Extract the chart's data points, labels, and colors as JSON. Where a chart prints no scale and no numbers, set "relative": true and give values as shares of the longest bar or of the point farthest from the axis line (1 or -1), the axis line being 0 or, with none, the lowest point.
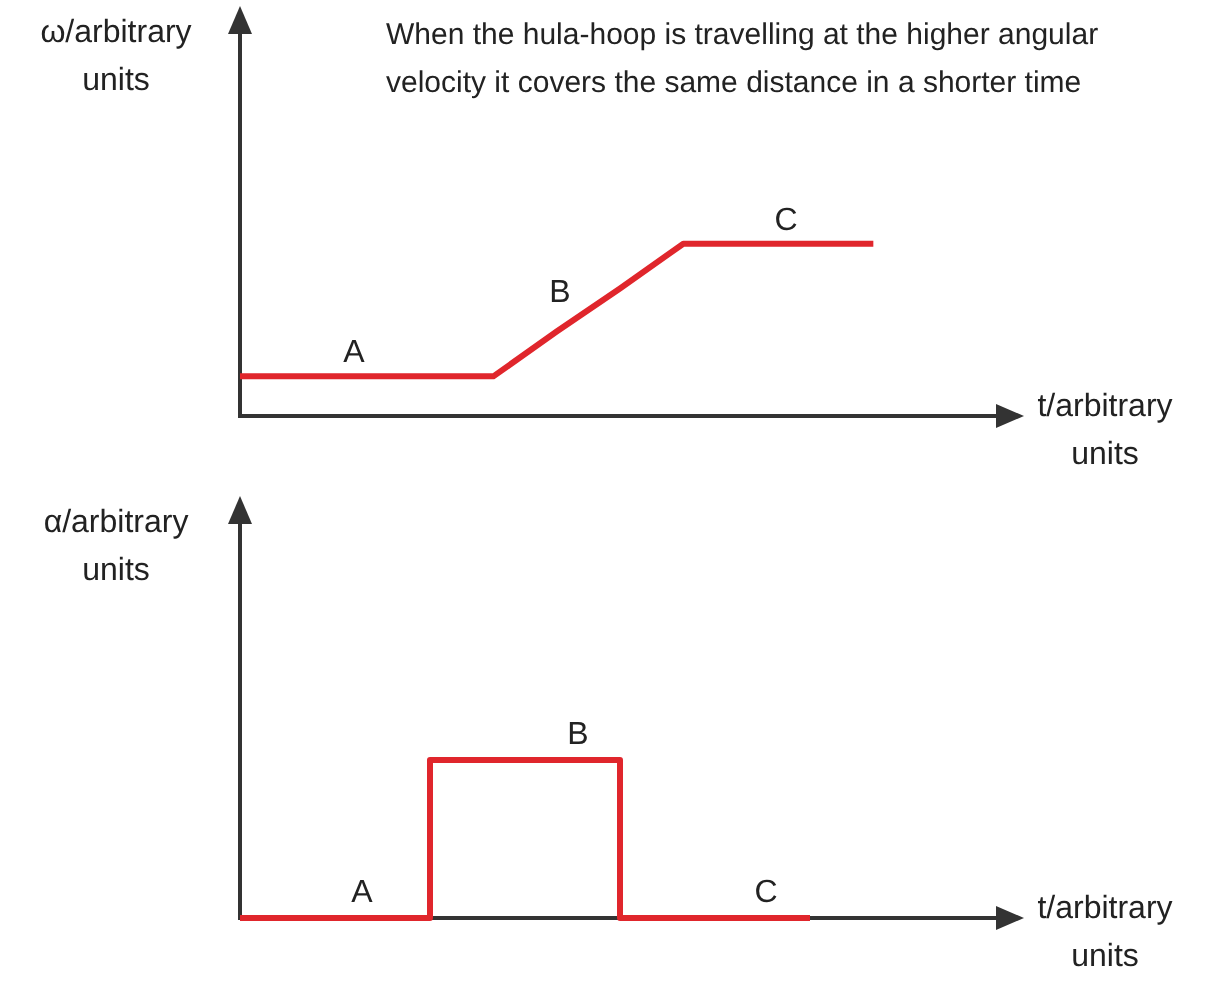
{
  "chart_data": [
    {
      "type": "line",
      "ylabel": "ω/arbitrary units",
      "xlabel": "t/arbitrary units",
      "annotations": [
        "When the hula-hoop is travelling at the higher angular velocity it covers the same distance in a shorter time",
        "A",
        "B",
        "C"
      ],
      "categories": [
        null,
        null,
        null,
        null,
        null,
        null,
        null,
        null,
        null,
        null,
        null,
        null,
        null
      ],
      "relative": true,
      "tick_labels": false,
      "grid": false,
      "legend": false,
      "marker": "none",
      "series": [
        {
          "color": "#e0262c",
          "values": [
            0.23,
            0.23,
            0.23,
            0.23,
            0.23,
            0.49,
            0.74,
            1,
            1,
            1,
            1,
            null,
            null
          ]
        }
      ]
    },
    {
      "type": "step",
      "ylabel": "α/arbitrary units",
      "xlabel": "t/arbitrary units",
      "annotations": [
        "A",
        "B",
        "C"
      ],
      "categories": [
        null,
        null,
        null,
        null,
        null,
        null,
        null,
        null,
        null,
        null,
        null,
        null,
        null
      ],
      "relative": true,
      "tick_labels": false,
      "grid": false,
      "legend": false,
      "marker": "none",
      "series": [
        {
          "color": "#e0262c",
          "values": [
            0,
            0,
            0,
            0,
            1,
            1,
            1,
            0,
            0,
            0,
            null,
            null,
            null
          ]
        }
      ]
    }
  ]
}
